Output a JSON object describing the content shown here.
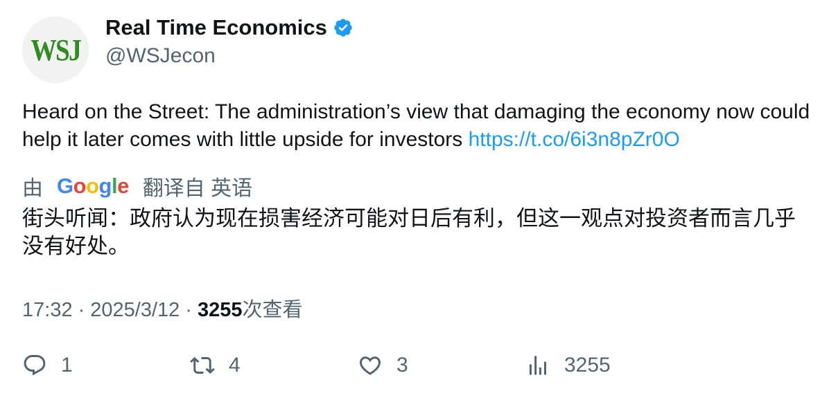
{
  "author": {
    "avatar_text": "WSJ",
    "name": "Real Time Economics",
    "handle": "@WSJecon",
    "verified": true
  },
  "tweet": {
    "text": "Heard on the Street: The administration’s view that damaging the economy now could help it later comes with little upside for investors",
    "link": "https://t.co/6i3n8pZr0O"
  },
  "translation": {
    "prefix": "由",
    "provider": "Google",
    "suffix": "翻译自 英语",
    "text": "街头听闻：政府认为现在损害经济可能对日后有利，但这一观点对投资者而言几乎没有好处。"
  },
  "meta": {
    "time": "17:32",
    "separator": "·",
    "date": "2025/3/12",
    "views_count": "3255",
    "views_label": "次查看"
  },
  "actions": {
    "replies": "1",
    "retweets": "4",
    "likes": "3",
    "views": "3255"
  },
  "colors": {
    "link": "#1d9bf0",
    "muted": "#536471",
    "verified": "#1d9bf0",
    "wsj_green": "#2e8b1f"
  }
}
